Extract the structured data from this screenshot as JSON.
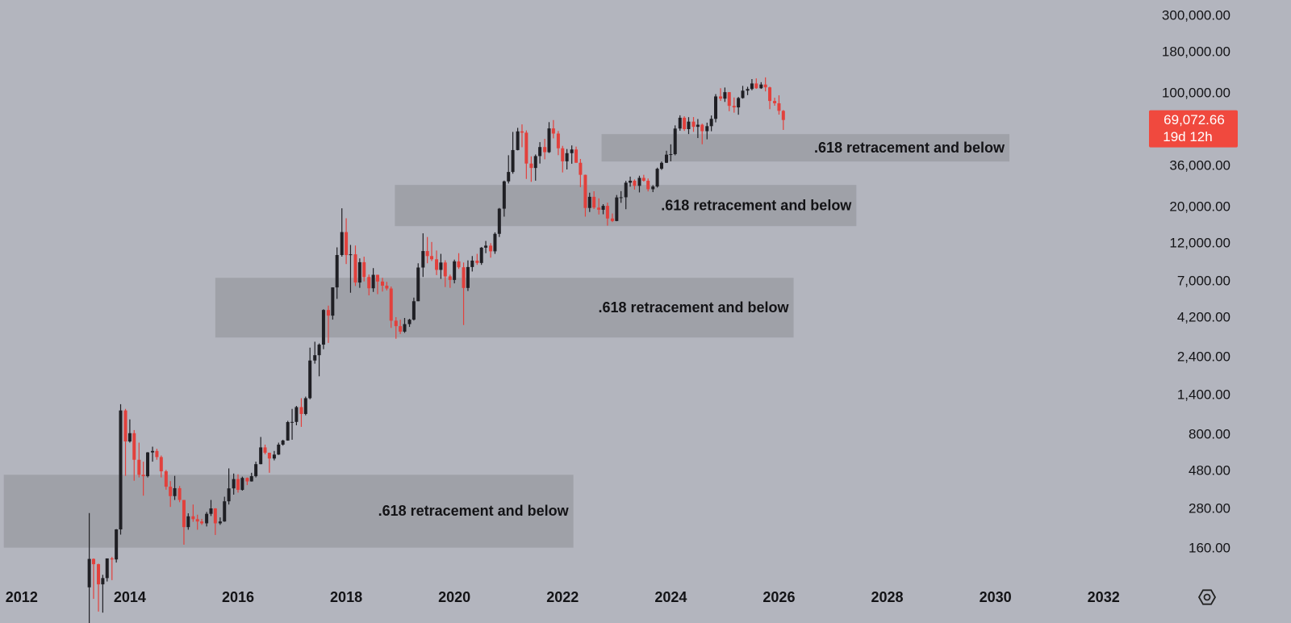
{
  "chart_data": {
    "type": "candlestick",
    "log_scale": true,
    "xlim": [
      2011.6,
      2032.78
    ],
    "ylim": [
      104,
      377000
    ],
    "xticks": [
      2012,
      2014,
      2016,
      2018,
      2020,
      2022,
      2024,
      2026,
      2028,
      2030,
      2032
    ],
    "yticks": [
      {
        "value": 300000,
        "label": "300,000.00"
      },
      {
        "value": 180000,
        "label": "180,000.00"
      },
      {
        "value": 100000,
        "label": "100,000.00"
      },
      {
        "value": 36000,
        "label": "36,000.00"
      },
      {
        "value": 20000,
        "label": "20,000.00"
      },
      {
        "value": 12000,
        "label": "12,000.00"
      },
      {
        "value": 7000,
        "label": "7,000.00"
      },
      {
        "value": 4200,
        "label": "4,200.00"
      },
      {
        "value": 2400,
        "label": "2,400.00"
      },
      {
        "value": 1400,
        "label": "1,400.00"
      },
      {
        "value": 800,
        "label": "800.00"
      },
      {
        "value": 480,
        "label": "480.00"
      },
      {
        "value": 280,
        "label": "280.00"
      },
      {
        "value": 160,
        "label": "160.00"
      }
    ],
    "up_color": "#1f1f24",
    "down_color": "#e2403c",
    "last_price": {
      "value": 69072.66,
      "label": "69,072.66"
    },
    "countdown": "19d 12h",
    "last_price_color": "#f0493e",
    "zone_color": "#9b9da5",
    "zones": [
      {
        "label": ".618 retracement and below",
        "xlim": [
          2011.67,
          2022.2
        ],
        "ylim": [
          163,
          457
        ]
      },
      {
        "label": ".618 retracement and below",
        "xlim": [
          2015.58,
          2026.27
        ],
        "ylim": [
          3185,
          7410
        ]
      },
      {
        "label": ".618 retracement and below",
        "xlim": [
          2018.9,
          2027.43
        ],
        "ylim": [
          15390,
          27560
        ]
      },
      {
        "label": ".618 retracement and below",
        "xlim": [
          2022.72,
          2030.26
        ],
        "ylim": [
          38400,
          56600
        ]
      }
    ],
    "x": [
      2013.25,
      2013.33,
      2013.42,
      2013.5,
      2013.58,
      2013.67,
      2013.75,
      2013.83,
      2013.92,
      2014,
      2014.08,
      2014.17,
      2014.25,
      2014.33,
      2014.42,
      2014.5,
      2014.58,
      2014.67,
      2014.75,
      2014.83,
      2014.92,
      2015,
      2015.08,
      2015.17,
      2015.25,
      2015.33,
      2015.42,
      2015.5,
      2015.58,
      2015.67,
      2015.75,
      2015.83,
      2015.92,
      2016,
      2016.08,
      2016.17,
      2016.25,
      2016.33,
      2016.42,
      2016.5,
      2016.58,
      2016.67,
      2016.75,
      2016.83,
      2016.92,
      2017,
      2017.08,
      2017.17,
      2017.25,
      2017.33,
      2017.42,
      2017.5,
      2017.58,
      2017.67,
      2017.75,
      2017.83,
      2017.92,
      2018,
      2018.08,
      2018.17,
      2018.25,
      2018.33,
      2018.42,
      2018.5,
      2018.58,
      2018.67,
      2018.75,
      2018.83,
      2018.92,
      2019,
      2019.08,
      2019.17,
      2019.25,
      2019.33,
      2019.42,
      2019.5,
      2019.58,
      2019.67,
      2019.75,
      2019.83,
      2019.92,
      2020,
      2020.08,
      2020.17,
      2020.25,
      2020.33,
      2020.42,
      2020.5,
      2020.58,
      2020.67,
      2020.75,
      2020.83,
      2020.92,
      2021,
      2021.08,
      2021.17,
      2021.25,
      2021.33,
      2021.42,
      2021.5,
      2021.58,
      2021.67,
      2021.75,
      2021.83,
      2021.92,
      2022,
      2022.08,
      2022.17,
      2022.25,
      2022.33,
      2022.42,
      2022.5,
      2022.58,
      2022.67,
      2022.75,
      2022.83,
      2022.92,
      2023,
      2023.08,
      2023.17,
      2023.25,
      2023.33,
      2023.42,
      2023.5,
      2023.58,
      2023.67,
      2023.75,
      2023.83,
      2023.92,
      2024,
      2024.08,
      2024.17,
      2024.25,
      2024.33,
      2024.42,
      2024.5,
      2024.58,
      2024.67,
      2024.75,
      2024.83,
      2024.92,
      2025,
      2025.08,
      2025.17,
      2025.25,
      2025.33,
      2025.42,
      2025.5,
      2025.58,
      2025.67,
      2025.75,
      2025.83,
      2025.92,
      2026,
      2026.08
    ],
    "open": [
      93,
      139,
      129,
      97,
      106,
      140,
      138,
      211,
      1135,
      732,
      823,
      565,
      457,
      448,
      627,
      640,
      587,
      480,
      386,
      338,
      378,
      320,
      218,
      254,
      244,
      236,
      230,
      263,
      284,
      230,
      236,
      314,
      377,
      430,
      369,
      437,
      416,
      448,
      531,
      673,
      624,
      575,
      608,
      700,
      742,
      963,
      965,
      1190,
      1080,
      1350,
      2300,
      2480,
      2880,
      4700,
      4340,
      6470,
      10230,
      14150,
      10220,
      10330,
      6930,
      9240,
      7490,
      6390,
      7730,
      7030,
      6630,
      6370,
      4040,
      3740,
      3460,
      3850,
      4100,
      5320,
      8570,
      10820,
      10080,
      9630,
      8290,
      9200,
      7560,
      7190,
      9350,
      8600,
      6420,
      8630,
      9450,
      9140,
      11350,
      11680,
      10780,
      13800,
      19700,
      28990,
      33110,
      45140,
      58800,
      57750,
      37300,
      35040,
      41460,
      47100,
      43800,
      61300,
      57000,
      46300,
      38500,
      43200,
      45500,
      37700,
      31800,
      19900,
      23300,
      20000,
      19400,
      20500,
      17150,
      16550,
      23100,
      23150,
      28450,
      29250,
      27200,
      30450,
      29250,
      25950,
      26950,
      34650,
      37700,
      42300,
      42600,
      61200,
      71300,
      60700,
      67500,
      62700,
      64600,
      58970,
      63300,
      70200,
      96400,
      93400,
      102400,
      84350,
      82550,
      94200,
      104600,
      107100,
      115800,
      108200,
      114050,
      109600,
      90400,
      87500,
      78600
    ],
    "high": [
      266,
      140,
      130,
      111,
      140,
      143,
      212,
      1240,
      1160,
      1000,
      860,
      720,
      550,
      630,
      680,
      660,
      600,
      490,
      418,
      450,
      390,
      320,
      265,
      300,
      260,
      245,
      270,
      320,
      285,
      250,
      335,
      500,
      465,
      460,
      445,
      440,
      470,
      550,
      780,
      700,
      625,
      640,
      720,
      750,
      980,
      1160,
      1210,
      1350,
      1380,
      2760,
      3000,
      2930,
      4750,
      5000,
      6470,
      11400,
      19800,
      17200,
      11800,
      11700,
      9750,
      9990,
      7760,
      8500,
      7750,
      7410,
      7000,
      6550,
      4250,
      4100,
      4200,
      4150,
      5600,
      9100,
      13900,
      13200,
      12300,
      10900,
      10400,
      9500,
      7750,
      9580,
      10500,
      9200,
      9480,
      10080,
      10400,
      11450,
      12480,
      12100,
      14100,
      19900,
      29300,
      41950,
      58350,
      61790,
      64900,
      59600,
      41300,
      42400,
      50500,
      52900,
      67000,
      69000,
      59100,
      47900,
      45800,
      48200,
      47400,
      39800,
      31900,
      24700,
      25200,
      22800,
      21000,
      21450,
      18400,
      23900,
      25250,
      29200,
      31000,
      29800,
      31400,
      31800,
      30200,
      27500,
      35200,
      38400,
      44700,
      48950,
      64000,
      73800,
      72800,
      71900,
      72000,
      70000,
      65600,
      66500,
      73600,
      99600,
      108300,
      109350,
      102500,
      95000,
      95700,
      111900,
      110500,
      123200,
      124400,
      117900,
      126200,
      110600,
      94600,
      97900,
      79500
    ],
    "low": [
      50,
      79,
      66,
      65,
      101,
      103,
      132,
      196,
      450,
      720,
      420,
      440,
      340,
      440,
      550,
      565,
      440,
      370,
      290,
      320,
      310,
      170,
      210,
      235,
      210,
      225,
      220,
      255,
      195,
      225,
      235,
      300,
      345,
      355,
      365,
      395,
      415,
      440,
      530,
      610,
      470,
      560,
      605,
      690,
      740,
      750,
      920,
      900,
      1060,
      1330,
      2200,
      1840,
      2700,
      2950,
      4100,
      5500,
      10000,
      9000,
      6000,
      6600,
      6430,
      7040,
      5780,
      6070,
      5880,
      6100,
      6200,
      3650,
      3130,
      3350,
      3400,
      3700,
      4050,
      5320,
      7500,
      9100,
      9400,
      7700,
      7300,
      6500,
      6430,
      6850,
      8400,
      3800,
      6150,
      8100,
      8900,
      8900,
      10500,
      9850,
      10400,
      13200,
      17600,
      28130,
      32300,
      44950,
      47000,
      30000,
      28800,
      29280,
      37300,
      39600,
      43300,
      53250,
      42000,
      32900,
      34300,
      37200,
      37700,
      26700,
      17600,
      18800,
      19600,
      18150,
      18200,
      15500,
      16300,
      16500,
      21400,
      19550,
      26900,
      25800,
      24800,
      28900,
      25150,
      24900,
      26550,
      34100,
      37600,
      38500,
      41900,
      59300,
      59200,
      56600,
      58400,
      53500,
      49000,
      52550,
      58900,
      66800,
      90500,
      89200,
      78200,
      76600,
      74400,
      93400,
      98200,
      105100,
      107300,
      107300,
      103500,
      80500,
      84500,
      74500,
      60000
    ],
    "close": [
      139,
      129,
      97,
      106,
      140,
      138,
      211,
      1135,
      732,
      823,
      565,
      457,
      448,
      627,
      640,
      587,
      480,
      386,
      338,
      378,
      320,
      218,
      254,
      244,
      236,
      230,
      263,
      284,
      230,
      236,
      314,
      377,
      430,
      369,
      437,
      416,
      448,
      531,
      673,
      624,
      575,
      608,
      700,
      742,
      963,
      965,
      1190,
      1080,
      1350,
      2300,
      2480,
      2880,
      4700,
      4340,
      6470,
      10230,
      14150,
      10220,
      10330,
      6930,
      9240,
      7490,
      6390,
      7730,
      7030,
      6630,
      6370,
      4040,
      3740,
      3460,
      3850,
      4100,
      5320,
      8570,
      10820,
      10080,
      9630,
      8290,
      9200,
      7560,
      7190,
      9350,
      8600,
      6420,
      8630,
      9450,
      9140,
      11350,
      11680,
      10780,
      13800,
      19700,
      28990,
      33110,
      45140,
      58800,
      57750,
      37300,
      35040,
      41460,
      47100,
      43800,
      61300,
      57000,
      46300,
      38500,
      43200,
      45500,
      37700,
      31800,
      19900,
      23300,
      20000,
      19400,
      20500,
      17150,
      16550,
      23100,
      23150,
      28450,
      29250,
      27200,
      30450,
      29250,
      25950,
      26950,
      34650,
      37700,
      42300,
      42600,
      61200,
      71300,
      60700,
      67500,
      62700,
      64600,
      58970,
      63300,
      70200,
      96400,
      93400,
      102400,
      84350,
      82550,
      94200,
      104600,
      107100,
      115800,
      108200,
      114050,
      109600,
      90400,
      87500,
      78600,
      69072.66
    ]
  }
}
